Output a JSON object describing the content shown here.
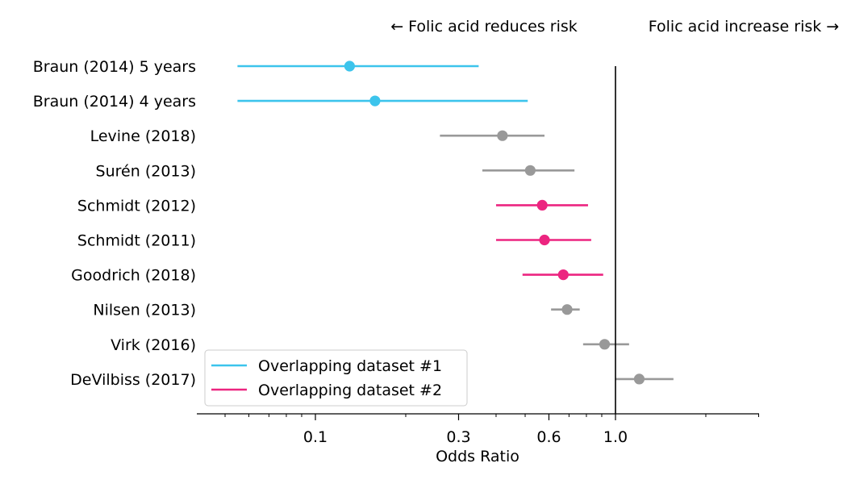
{
  "chart_data": {
    "type": "forest",
    "x_scale": "log",
    "xlabel": "Odds Ratio",
    "xlim": [
      0.05,
      3.0
    ],
    "xticks": [
      {
        "value": 0.1,
        "label": "0.1"
      },
      {
        "value": 0.3,
        "label": "0.3"
      },
      {
        "value": 0.6,
        "label": "0.6"
      },
      {
        "value": 1.0,
        "label": "1.0"
      }
    ],
    "reference_line": 1.0,
    "annotations": {
      "left": "← Folic acid reduces risk",
      "right": "Folic acid increase risk →"
    },
    "colors": {
      "overlap1": "#3cc4ec",
      "overlap2": "#ec2580",
      "other": "#999999",
      "reference": "#000000"
    },
    "legend": {
      "position": "lower-left",
      "entries": [
        {
          "label": "Overlapping dataset #1",
          "group": "overlap1"
        },
        {
          "label": "Overlapping dataset #2",
          "group": "overlap2"
        }
      ]
    },
    "studies": [
      {
        "label": "Braun (2014) 5 years",
        "or": 0.13,
        "lo": 0.055,
        "hi": 0.35,
        "group": "overlap1"
      },
      {
        "label": "Braun (2014) 4 years",
        "or": 0.158,
        "lo": 0.055,
        "hi": 0.51,
        "group": "overlap1"
      },
      {
        "label": "Levine (2018)",
        "or": 0.42,
        "lo": 0.26,
        "hi": 0.58,
        "group": "other"
      },
      {
        "label": "Surén (2013)",
        "or": 0.52,
        "lo": 0.36,
        "hi": 0.73,
        "group": "other"
      },
      {
        "label": "Schmidt (2012)",
        "or": 0.57,
        "lo": 0.4,
        "hi": 0.81,
        "group": "overlap2"
      },
      {
        "label": "Schmidt (2011)",
        "or": 0.58,
        "lo": 0.4,
        "hi": 0.83,
        "group": "overlap2"
      },
      {
        "label": "Goodrich (2018)",
        "or": 0.67,
        "lo": 0.49,
        "hi": 0.91,
        "group": "overlap2"
      },
      {
        "label": "Nilsen (2013)",
        "or": 0.69,
        "lo": 0.61,
        "hi": 0.76,
        "group": "other"
      },
      {
        "label": "Virk (2016)",
        "or": 0.92,
        "lo": 0.78,
        "hi": 1.11,
        "group": "other"
      },
      {
        "label": "DeVilbiss (2017)",
        "or": 1.2,
        "lo": 1.0,
        "hi": 1.56,
        "group": "other"
      }
    ]
  }
}
